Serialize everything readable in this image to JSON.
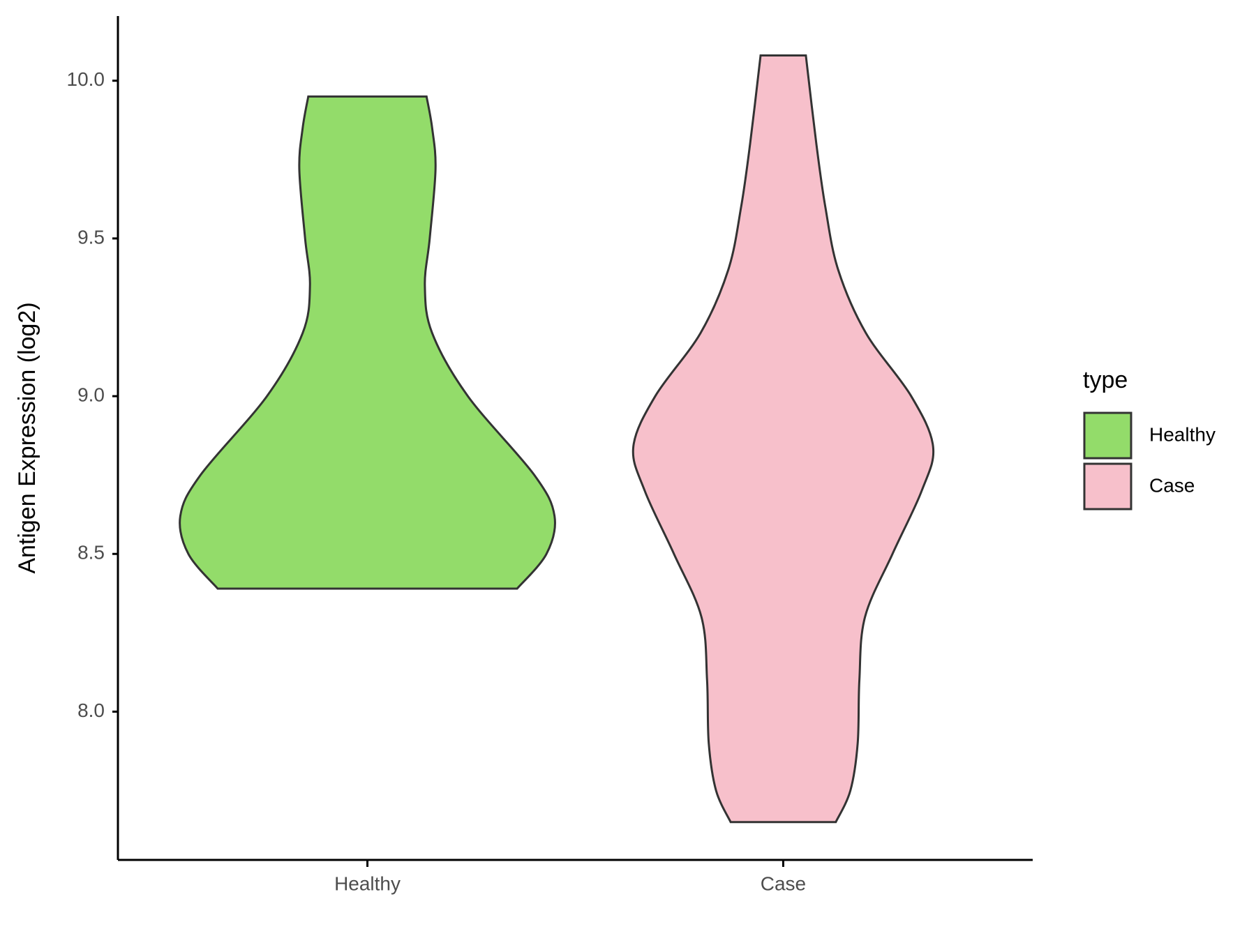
{
  "chart_data": {
    "type": "violin",
    "y_label": "Antigen Expression (log2)",
    "categories": [
      "Healthy",
      "Case"
    ],
    "ylim": [
      7.53,
      10.205
    ],
    "yticks": [
      {
        "value": 8,
        "label": "8.0"
      },
      8.5,
      {
        "value": 9,
        "label": "9.0"
      },
      9.5,
      {
        "value": 10,
        "label": "10.0"
      }
    ],
    "series": [
      {
        "name": "Healthy",
        "color": "#93dc6a",
        "y": [
          8.39,
          8.5,
          8.62,
          8.75,
          9.0,
          9.2,
          9.35,
          9.5,
          9.72,
          9.85,
          9.95
        ],
        "widths": [
          0.8,
          0.957,
          1.0,
          0.892,
          0.537,
          0.346,
          0.307,
          0.333,
          0.364,
          0.346,
          0.316
        ]
      },
      {
        "name": "Case",
        "color": "#f7c0cb",
        "y": [
          7.65,
          7.75,
          7.9,
          8.1,
          8.3,
          8.5,
          8.7,
          8.84,
          9.0,
          9.2,
          9.4,
          9.6,
          9.8,
          10.08
        ],
        "widths": [
          0.281,
          0.359,
          0.398,
          0.407,
          0.437,
          0.584,
          0.74,
          0.801,
          0.684,
          0.442,
          0.294,
          0.225,
          0.177,
          0.121
        ]
      }
    ],
    "legend_title": "type",
    "legend_position": "right"
  }
}
